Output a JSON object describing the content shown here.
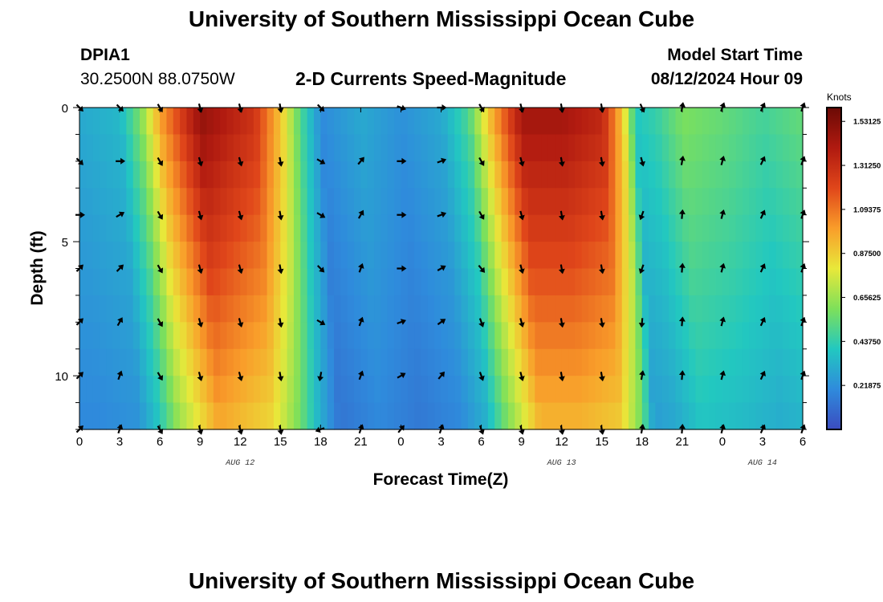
{
  "page": {
    "title": "University of Southern Mississippi Ocean Cube",
    "title_repeat": "University of Southern Mississippi Ocean Cube",
    "station_id": "DPIA1",
    "station_coords": "30.2500N  88.0750W",
    "subtitle": "2-D Currents Speed-Magnitude",
    "model_start_label": "Model Start Time",
    "model_start_value": "08/12/2024 Hour 09"
  },
  "chart_data": {
    "type": "heatmap",
    "title": "2-D Currents Speed-Magnitude",
    "xlabel": "Forecast Time(Z)",
    "ylabel": "Depth (ft)",
    "x_tick_labels": [
      "0",
      "3",
      "6",
      "9",
      "12",
      "15",
      "18",
      "21",
      "0",
      "3",
      "6",
      "9",
      "12",
      "15",
      "18",
      "21",
      "0",
      "3",
      "6"
    ],
    "x_range_hours": [
      0,
      54
    ],
    "date_labels": [
      {
        "text": "AUG 12",
        "at_hour": 12
      },
      {
        "text": "AUG 13",
        "at_hour": 36
      },
      {
        "text": "AUG 14",
        "at_hour": 51
      }
    ],
    "y_tick_labels": [
      "0",
      "5",
      "10"
    ],
    "y_range_ft": [
      0,
      12
    ],
    "colorbar": {
      "unit": "Knots",
      "range": [
        0.0,
        1.6
      ],
      "tick_labels": [
        "1.53125",
        "1.31250",
        "1.09375",
        "0.87500",
        "0.65625",
        "0.43750",
        "0.21875"
      ],
      "tick_values": [
        1.53125,
        1.3125,
        1.09375,
        0.875,
        0.65625,
        0.4375,
        0.21875
      ],
      "colors": [
        "#3b4cc0",
        "#2f8bdc",
        "#22c8c0",
        "#7ee05a",
        "#e8e83a",
        "#f99d2a",
        "#e0461a",
        "#b01a10",
        "#6b0a05"
      ]
    },
    "speed_profile": [
      {
        "hour": 0,
        "speed": 0.3
      },
      {
        "hour": 3,
        "speed": 0.35
      },
      {
        "hour": 4.5,
        "speed": 0.6
      },
      {
        "hour": 6,
        "speed": 1.0
      },
      {
        "hour": 9,
        "speed": 1.5
      },
      {
        "hour": 11,
        "speed": 1.4
      },
      {
        "hour": 13,
        "speed": 1.3
      },
      {
        "hour": 15,
        "speed": 0.9
      },
      {
        "hour": 16.5,
        "speed": 0.5
      },
      {
        "hour": 18,
        "speed": 0.2
      },
      {
        "hour": 21,
        "speed": 0.3
      },
      {
        "hour": 24,
        "speed": 0.22
      },
      {
        "hour": 27,
        "speed": 0.3
      },
      {
        "hour": 29,
        "speed": 0.5
      },
      {
        "hour": 30.5,
        "speed": 0.9
      },
      {
        "hour": 33,
        "speed": 1.45
      },
      {
        "hour": 36,
        "speed": 1.45
      },
      {
        "hour": 39,
        "speed": 1.35
      },
      {
        "hour": 40.5,
        "speed": 0.9
      },
      {
        "hour": 41.5,
        "speed": 0.4
      },
      {
        "hour": 43,
        "speed": 0.45
      },
      {
        "hour": 45,
        "speed": 0.6
      },
      {
        "hour": 48,
        "speed": 0.55
      },
      {
        "hour": 51,
        "speed": 0.48
      },
      {
        "hour": 54,
        "speed": 0.55
      }
    ],
    "arrow_depths_ft": [
      0,
      2,
      4,
      6,
      8,
      10,
      12
    ],
    "arrows": [
      {
        "hour": 0,
        "dir_deg": [
          135,
          135,
          90,
          45,
          45,
          45,
          45
        ]
      },
      {
        "hour": 3,
        "dir_deg": [
          135,
          90,
          60,
          45,
          30,
          20,
          20
        ]
      },
      {
        "hour": 6,
        "dir_deg": [
          150,
          150,
          150,
          150,
          150,
          150,
          150
        ]
      },
      {
        "hour": 9,
        "dir_deg": [
          165,
          165,
          165,
          165,
          165,
          165,
          165
        ]
      },
      {
        "hour": 12,
        "dir_deg": [
          165,
          165,
          165,
          165,
          165,
          165,
          165
        ]
      },
      {
        "hour": 15,
        "dir_deg": [
          170,
          170,
          170,
          170,
          170,
          170,
          170
        ]
      },
      {
        "hour": 18,
        "dir_deg": [
          135,
          120,
          120,
          135,
          120,
          190,
          250
        ]
      },
      {
        "hour": 21,
        "dir_deg": null,
        "dir_list": [
          null,
          40,
          30,
          20,
          20,
          20,
          20
        ]
      },
      {
        "hour": 24,
        "dir_deg": [
          110,
          90,
          90,
          90,
          70,
          60,
          40
        ]
      },
      {
        "hour": 27,
        "dir_deg": [
          90,
          70,
          70,
          60,
          55,
          40,
          20
        ]
      },
      {
        "hour": 30,
        "dir_deg": [
          150,
          150,
          150,
          140,
          160,
          160,
          160
        ]
      },
      {
        "hour": 33,
        "dir_deg": [
          165,
          165,
          165,
          165,
          165,
          165,
          165
        ]
      },
      {
        "hour": 36,
        "dir_deg": [
          170,
          170,
          170,
          170,
          170,
          170,
          170
        ]
      },
      {
        "hour": 39,
        "dir_deg": [
          170,
          170,
          170,
          170,
          170,
          170,
          170
        ]
      },
      {
        "hour": 42,
        "dir_deg": [
          155,
          165,
          200,
          200,
          185,
          10,
          10
        ]
      },
      {
        "hour": 45,
        "dir_deg": [
          10,
          10,
          5,
          5,
          5,
          5,
          5
        ]
      },
      {
        "hour": 48,
        "dir_deg": [
          20,
          15,
          15,
          15,
          15,
          15,
          15
        ]
      },
      {
        "hour": 51,
        "dir_deg": [
          25,
          25,
          25,
          25,
          25,
          25,
          25
        ]
      },
      {
        "hour": 54,
        "dir_deg": [
          20,
          20,
          20,
          20,
          20,
          20,
          20
        ]
      }
    ]
  }
}
